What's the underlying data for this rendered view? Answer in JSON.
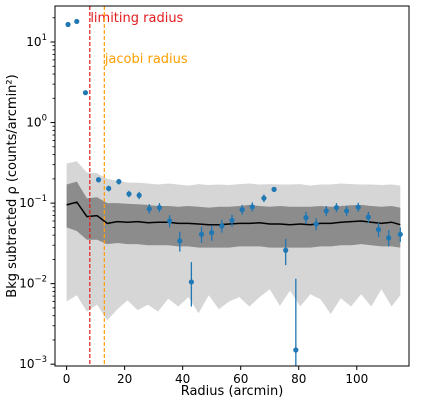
{
  "chart_data": {
    "type": "scatter",
    "xlabel": "Radius (arcmin)",
    "ylabel": "Bkg subtracted ρ (counts/arcmin²)",
    "xscale": "linear",
    "yscale": "log",
    "xlim": [
      -4,
      118
    ],
    "ylim": [
      0.00095,
      28
    ],
    "x_ticks": [
      0,
      20,
      40,
      60,
      80,
      100
    ],
    "y_ticks": [
      {
        "value": 0.001,
        "base": "10",
        "exp": "−3"
      },
      {
        "value": 0.01,
        "base": "10",
        "exp": "−2"
      },
      {
        "value": 0.1,
        "base": "10",
        "exp": "−1"
      },
      {
        "value": 1,
        "base": "10",
        "exp": "0"
      },
      {
        "value": 10,
        "base": "10",
        "exp": "1"
      }
    ],
    "points": [
      {
        "x": 0.5,
        "y": 16.5,
        "lo": 16.5,
        "hi": 16.5
      },
      {
        "x": 3.5,
        "y": 18.0,
        "lo": 18.0,
        "hi": 18.0
      },
      {
        "x": 6.5,
        "y": 2.35,
        "lo": 2.35,
        "hi": 2.35
      },
      {
        "x": 11.0,
        "y": 0.195,
        "lo": 0.18,
        "hi": 0.21
      },
      {
        "x": 14.5,
        "y": 0.152,
        "lo": 0.14,
        "hi": 0.165
      },
      {
        "x": 18.0,
        "y": 0.185,
        "lo": 0.17,
        "hi": 0.2
      },
      {
        "x": 21.5,
        "y": 0.13,
        "lo": 0.118,
        "hi": 0.142
      },
      {
        "x": 25.0,
        "y": 0.125,
        "lo": 0.112,
        "hi": 0.138
      },
      {
        "x": 28.5,
        "y": 0.085,
        "lo": 0.074,
        "hi": 0.097
      },
      {
        "x": 32.0,
        "y": 0.088,
        "lo": 0.077,
        "hi": 0.1
      },
      {
        "x": 35.5,
        "y": 0.06,
        "lo": 0.05,
        "hi": 0.071
      },
      {
        "x": 39.0,
        "y": 0.034,
        "lo": 0.025,
        "hi": 0.044
      },
      {
        "x": 43.0,
        "y": 0.0105,
        "lo": 0.0052,
        "hi": 0.0185
      },
      {
        "x": 46.5,
        "y": 0.041,
        "lo": 0.032,
        "hi": 0.051
      },
      {
        "x": 50.0,
        "y": 0.043,
        "lo": 0.034,
        "hi": 0.053
      },
      {
        "x": 53.5,
        "y": 0.052,
        "lo": 0.043,
        "hi": 0.062
      },
      {
        "x": 57.0,
        "y": 0.061,
        "lo": 0.051,
        "hi": 0.072
      },
      {
        "x": 60.5,
        "y": 0.083,
        "lo": 0.072,
        "hi": 0.095
      },
      {
        "x": 64.0,
        "y": 0.09,
        "lo": 0.079,
        "hi": 0.102
      },
      {
        "x": 68.0,
        "y": 0.115,
        "lo": 0.103,
        "hi": 0.128
      },
      {
        "x": 71.5,
        "y": 0.148,
        "lo": 0.148,
        "hi": 0.148
      },
      {
        "x": 75.5,
        "y": 0.026,
        "lo": 0.017,
        "hi": 0.036
      },
      {
        "x": 79.0,
        "y": 0.0015,
        "lo": 0.00095,
        "hi": 0.0115
      },
      {
        "x": 82.5,
        "y": 0.066,
        "lo": 0.055,
        "hi": 0.078
      },
      {
        "x": 86.0,
        "y": 0.055,
        "lo": 0.046,
        "hi": 0.065
      },
      {
        "x": 89.5,
        "y": 0.08,
        "lo": 0.069,
        "hi": 0.092
      },
      {
        "x": 93.0,
        "y": 0.088,
        "lo": 0.077,
        "hi": 0.1
      },
      {
        "x": 96.5,
        "y": 0.08,
        "lo": 0.069,
        "hi": 0.092
      },
      {
        "x": 100.5,
        "y": 0.089,
        "lo": 0.078,
        "hi": 0.101
      },
      {
        "x": 104.0,
        "y": 0.067,
        "lo": 0.057,
        "hi": 0.078
      },
      {
        "x": 107.5,
        "y": 0.047,
        "lo": 0.038,
        "hi": 0.057
      },
      {
        "x": 111.0,
        "y": 0.037,
        "lo": 0.029,
        "hi": 0.046
      },
      {
        "x": 115.0,
        "y": 0.041,
        "lo": 0.033,
        "hi": 0.05
      }
    ],
    "median_line": {
      "x": [
        0,
        3.5,
        7,
        10.5,
        14,
        17.5,
        21,
        24.5,
        28,
        31.5,
        35,
        38.5,
        42,
        45.5,
        49,
        52.5,
        56,
        59.5,
        63,
        66.5,
        70,
        73.5,
        77,
        80.5,
        84,
        87.5,
        91,
        94.5,
        98,
        101.5,
        105,
        108.5,
        112,
        115
      ],
      "y": [
        0.095,
        0.103,
        0.068,
        0.07,
        0.056,
        0.059,
        0.058,
        0.059,
        0.057,
        0.058,
        0.058,
        0.056,
        0.056,
        0.055,
        0.054,
        0.054,
        0.055,
        0.056,
        0.056,
        0.057,
        0.055,
        0.055,
        0.054,
        0.055,
        0.054,
        0.056,
        0.056,
        0.058,
        0.059,
        0.06,
        0.058,
        0.056,
        0.058,
        0.054
      ]
    },
    "inner_band": {
      "x": [
        0,
        3.5,
        7,
        10.5,
        14,
        17.5,
        21,
        24.5,
        28,
        31.5,
        35,
        38.5,
        42,
        45.5,
        49,
        52.5,
        56,
        59.5,
        63,
        66.5,
        70,
        73.5,
        77,
        80.5,
        84,
        87.5,
        91,
        94.5,
        98,
        101.5,
        105,
        108.5,
        112,
        115
      ],
      "upper": [
        0.17,
        0.185,
        0.115,
        0.118,
        0.1,
        0.1,
        0.098,
        0.097,
        0.095,
        0.092,
        0.092,
        0.09,
        0.092,
        0.09,
        0.088,
        0.09,
        0.09,
        0.092,
        0.095,
        0.092,
        0.09,
        0.092,
        0.09,
        0.09,
        0.09,
        0.092,
        0.09,
        0.092,
        0.094,
        0.095,
        0.092,
        0.09,
        0.092,
        0.088
      ],
      "lower": [
        0.05,
        0.045,
        0.035,
        0.035,
        0.031,
        0.032,
        0.031,
        0.031,
        0.03,
        0.03,
        0.03,
        0.029,
        0.029,
        0.028,
        0.028,
        0.028,
        0.028,
        0.029,
        0.029,
        0.029,
        0.028,
        0.028,
        0.028,
        0.028,
        0.028,
        0.029,
        0.029,
        0.03,
        0.03,
        0.031,
        0.03,
        0.029,
        0.029,
        0.028
      ]
    },
    "outer_band": {
      "x": [
        0,
        3.5,
        7,
        10.5,
        14,
        17.5,
        21,
        24.5,
        28,
        31.5,
        35,
        38.5,
        42,
        45.5,
        49,
        52.5,
        56,
        59.5,
        63,
        66.5,
        70,
        73.5,
        77,
        80.5,
        84,
        87.5,
        91,
        94.5,
        98,
        101.5,
        105,
        108.5,
        112,
        115
      ],
      "upper": [
        0.31,
        0.33,
        0.24,
        0.235,
        0.2,
        0.19,
        0.18,
        0.18,
        0.175,
        0.17,
        0.175,
        0.17,
        0.165,
        0.172,
        0.168,
        0.17,
        0.168,
        0.172,
        0.175,
        0.17,
        0.172,
        0.17,
        0.17,
        0.172,
        0.165,
        0.17,
        0.17,
        0.175,
        0.172,
        0.17,
        0.17,
        0.168,
        0.17,
        0.165
      ],
      "lower": [
        0.006,
        0.0072,
        0.0045,
        0.0055,
        0.0035,
        0.0048,
        0.0062,
        0.0047,
        0.0055,
        0.0045,
        0.0065,
        0.0052,
        0.0068,
        0.0043,
        0.0072,
        0.0048,
        0.006,
        0.0068,
        0.0052,
        0.0068,
        0.0085,
        0.0053,
        0.0082,
        0.0052,
        0.0074,
        0.0064,
        0.0042,
        0.0066,
        0.0052,
        0.0074,
        0.0052,
        0.0085,
        0.0052,
        0.0072
      ]
    },
    "vlines": [
      {
        "x": 8.0,
        "label": "limiting radius",
        "color": "#e41a1c"
      },
      {
        "x": 13.0,
        "label": "jacobi radius",
        "color": "#ff9f00"
      }
    ],
    "colors": {
      "points": "#1f77b4",
      "median": "#000000",
      "inner_band": "#8c8c8c",
      "outer_band": "#d6d6d6"
    },
    "grid": false
  }
}
